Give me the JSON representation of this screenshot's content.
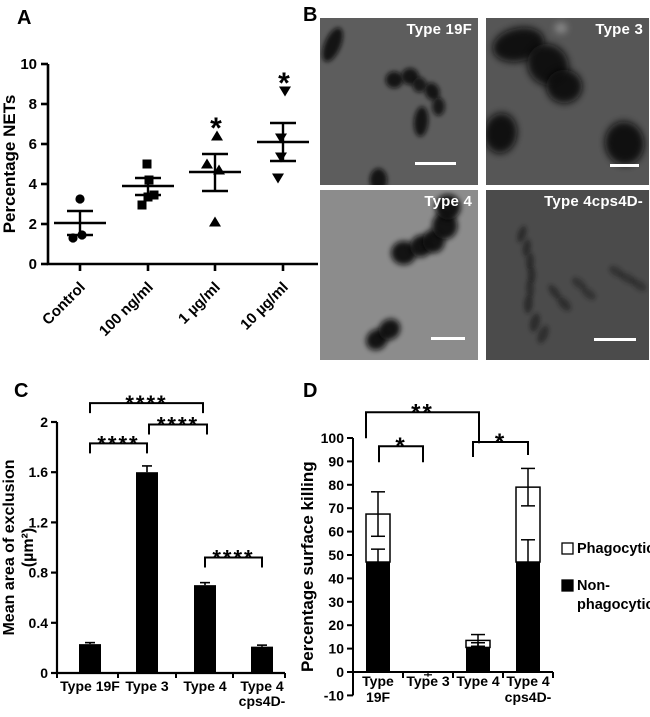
{
  "figure": {
    "panel_letters": [
      "A",
      "B",
      "C",
      "D"
    ],
    "background": "#ffffff",
    "ink_color": "#000000"
  },
  "chart_data": [
    {
      "id": "A",
      "type": "scatter",
      "title": "",
      "xlabel": "",
      "ylabel": "Percentage NETs",
      "ylim": [
        0,
        10
      ],
      "yticks": [
        0,
        2,
        4,
        6,
        8,
        10
      ],
      "ytick_labels": [
        "0",
        "2",
        "4",
        "6",
        "8",
        "10"
      ],
      "categories": [
        "Control",
        "100 ng/ml",
        "1 µg/ml",
        "10 µg/ml"
      ],
      "markers": [
        "circle",
        "square",
        "triangle-up",
        "triangle-down"
      ],
      "groups": [
        {
          "points": [
            [
              3.25,
              0
            ],
            [
              1.45,
              2
            ],
            [
              1.3,
              -7
            ]
          ],
          "mean": 2.05,
          "sem_low": 1.45,
          "sem_high": 2.65,
          "significance": ""
        },
        {
          "points": [
            [
              5.0,
              -1
            ],
            [
              4.2,
              1
            ],
            [
              3.45,
              6
            ],
            [
              3.35,
              0
            ],
            [
              2.95,
              -6
            ]
          ],
          "mean": 3.9,
          "sem_low": 3.45,
          "sem_high": 4.3,
          "significance": ""
        },
        {
          "points": [
            [
              6.4,
              2
            ],
            [
              5.0,
              -8
            ],
            [
              4.7,
              4
            ],
            [
              2.1,
              0
            ]
          ],
          "mean": 4.6,
          "sem_low": 3.65,
          "sem_high": 5.5,
          "significance": "*"
        },
        {
          "points": [
            [
              8.65,
              2
            ],
            [
              6.3,
              -2
            ],
            [
              5.35,
              -2
            ],
            [
              4.3,
              -5
            ]
          ],
          "mean": 6.1,
          "sem_low": 5.15,
          "sem_high": 7.05,
          "significance": "*"
        }
      ]
    },
    {
      "id": "C",
      "type": "bar",
      "title": "",
      "xlabel": "",
      "ylabel_lines": [
        "Mean area of exclusion",
        "(µm²)"
      ],
      "ylim": [
        0,
        2
      ],
      "yticks": [
        0,
        0.4,
        0.8,
        1.2,
        1.6,
        2
      ],
      "ytick_labels": [
        "0",
        "0.4",
        "0.8",
        "1.2",
        "1.6",
        "2"
      ],
      "categories": [
        "Type  19F",
        "Type 3",
        "Type 4",
        "Type 4\ncps4D-"
      ],
      "values": [
        0.23,
        1.6,
        0.7,
        0.21
      ],
      "errors": [
        0.012,
        0.05,
        0.02,
        0.012
      ],
      "bar_color": "#000000",
      "brackets": [
        {
          "from": 0,
          "to": 1,
          "label": "****",
          "y": 1.83,
          "legs": [
            10,
            10
          ],
          "dxa": 0,
          "dxb": 0
        },
        {
          "from": 1,
          "to": 2,
          "label": "****",
          "y": 1.98,
          "legs": [
            10,
            10
          ],
          "dxa": 2,
          "dxb": 2
        },
        {
          "from": 0,
          "to": 2,
          "label": "****",
          "y": 2.15,
          "legs": [
            10,
            10
          ],
          "dxa": 0,
          "dxb": -2
        },
        {
          "from": 2,
          "to": 3,
          "label": "****",
          "y": 0.92,
          "legs": [
            10,
            10
          ],
          "dxa": 0,
          "dxb": 0
        }
      ]
    },
    {
      "id": "D",
      "type": "stacked-bar",
      "title": "",
      "xlabel": "",
      "ylabel": "Percentage surface killing",
      "ylim": [
        -10,
        100
      ],
      "yticks": [
        -10,
        0,
        10,
        20,
        30,
        40,
        50,
        60,
        70,
        80,
        90,
        100
      ],
      "ytick_labels": [
        "-10",
        "0",
        "10",
        "20",
        "30",
        "40",
        "50",
        "60",
        "70",
        "80",
        "90",
        "100"
      ],
      "categories": [
        "Type\n19F",
        "Type 3",
        "Type 4",
        "Type 4\ncps4D-"
      ],
      "series": [
        {
          "name": "Non-phagocytic",
          "color": "#000000",
          "values": [
            47,
            0,
            10.5,
            47
          ],
          "errors": [
            5.5,
            1,
            2,
            9.5
          ]
        },
        {
          "name": "Phagocytic",
          "color": "#ffffff",
          "values": [
            20.5,
            0,
            3,
            32
          ],
          "errors": [
            9.5,
            0,
            2.5,
            8
          ]
        }
      ],
      "legend": [
        {
          "label_lines": [
            "Phagocytic"
          ],
          "fill": "#ffffff"
        },
        {
          "label_lines": [
            "Non-",
            "phagocytic"
          ],
          "fill": "#000000"
        }
      ],
      "brackets": [
        {
          "from": 0,
          "to": 2,
          "label": "**",
          "y": 111,
          "legs": [
            26,
            31
          ],
          "dxa": -12,
          "dxb": 1
        },
        {
          "from": 0,
          "to": 1,
          "label": "*",
          "y": 96.5,
          "legs": [
            16,
            16
          ],
          "dxa": 1,
          "dxb": -5
        },
        {
          "from": 2,
          "to": 3,
          "label": "*",
          "y": 98.3,
          "legs": [
            15,
            13
          ],
          "dxa": -5,
          "dxb": 0
        }
      ]
    }
  ],
  "panel_b": {
    "tiles": [
      {
        "label": "Type 19F",
        "bg": "#5d5d5d",
        "label_color": "#ffffff",
        "blob_color": "#0a0a0a",
        "blur": 1.3,
        "scalebar": {
          "left": 60,
          "width": 26,
          "bottom": 12
        },
        "blobs": [
          [
            8,
            16,
            5,
            11,
            25,
            0.9
          ],
          [
            47,
            37,
            5.5,
            5,
            0,
            0.9
          ],
          [
            57,
            35,
            5.5,
            5,
            0,
            0.9
          ],
          [
            63,
            40,
            4.5,
            4.5,
            0,
            0.85
          ],
          [
            71,
            44,
            4.5,
            5.5,
            -30,
            0.9
          ],
          [
            75,
            53,
            4,
            5.5,
            0,
            0.85
          ],
          [
            64,
            62,
            4.5,
            9,
            5,
            0.9
          ],
          [
            37,
            97,
            5.5,
            7,
            0,
            0.9
          ]
        ]
      },
      {
        "label": "Type 3",
        "bg": "#565656",
        "label_color": "#ffffff",
        "blob_color": "#0a0a0a",
        "blur": 2.2,
        "scalebar": {
          "left": 76,
          "width": 18,
          "bottom": 11
        },
        "blobs": [
          [
            20,
            16,
            16,
            10,
            -12,
            0.95
          ],
          [
            38,
            28,
            13,
            12,
            40,
            0.95
          ],
          [
            48,
            41,
            11,
            10,
            0,
            0.95
          ],
          [
            9,
            69,
            10,
            12,
            8,
            0.95
          ],
          [
            85,
            75,
            12,
            13,
            -12,
            0.95
          ],
          [
            46,
            6,
            4,
            3,
            0,
            0.8,
            "#9a9a9a"
          ]
        ]
      },
      {
        "label": "Type 4",
        "bg": "#8c8c8c",
        "label_color": "#ffffff",
        "blob_color": "#0a0a0a",
        "blur": 1.6,
        "scalebar": {
          "left": 70,
          "width": 22,
          "bottom": 12
        },
        "blobs": [
          [
            53,
            37,
            8,
            7,
            0,
            0.95
          ],
          [
            64,
            33,
            7,
            6.5,
            -20,
            0.95
          ],
          [
            72,
            30,
            7,
            7,
            0,
            0.95
          ],
          [
            79,
            21,
            8,
            8,
            0,
            0.95
          ],
          [
            81,
            10,
            8,
            7.5,
            0,
            0.95
          ],
          [
            36,
            88,
            7,
            6,
            -25,
            0.95
          ],
          [
            44,
            82,
            7,
            6,
            -25,
            0.95
          ]
        ]
      },
      {
        "label": "Type 4cps4D-",
        "bg": "#4b4b4b",
        "label_color": "#ffffff",
        "blob_color": "#161616",
        "blur": 1.2,
        "scalebar": {
          "left": 66,
          "width": 26,
          "bottom": 11
        },
        "blobs": [
          [
            22,
            26,
            2.6,
            5,
            20,
            0.55
          ],
          [
            25,
            34,
            2.6,
            5,
            10,
            0.55
          ],
          [
            27,
            42,
            2.6,
            5,
            5,
            0.55
          ],
          [
            28,
            50,
            2.6,
            5,
            0,
            0.55
          ],
          [
            27,
            58,
            2.6,
            5,
            -5,
            0.5
          ],
          [
            26,
            67,
            2.8,
            5.5,
            5,
            0.55
          ],
          [
            30,
            78,
            3,
            5.5,
            15,
            0.55
          ],
          [
            35,
            85,
            3,
            5.5,
            25,
            0.5
          ],
          [
            42,
            60,
            2.6,
            5,
            -40,
            0.5
          ],
          [
            48,
            67,
            2.8,
            5,
            -45,
            0.55
          ],
          [
            57,
            55,
            2.6,
            5,
            -55,
            0.45
          ],
          [
            63,
            61,
            2.6,
            5,
            -55,
            0.45
          ],
          [
            80,
            48,
            2.6,
            5,
            -60,
            0.45
          ],
          [
            87,
            52,
            2.6,
            5,
            -65,
            0.45
          ],
          [
            94,
            56,
            2.6,
            5,
            -60,
            0.45
          ]
        ]
      }
    ]
  }
}
